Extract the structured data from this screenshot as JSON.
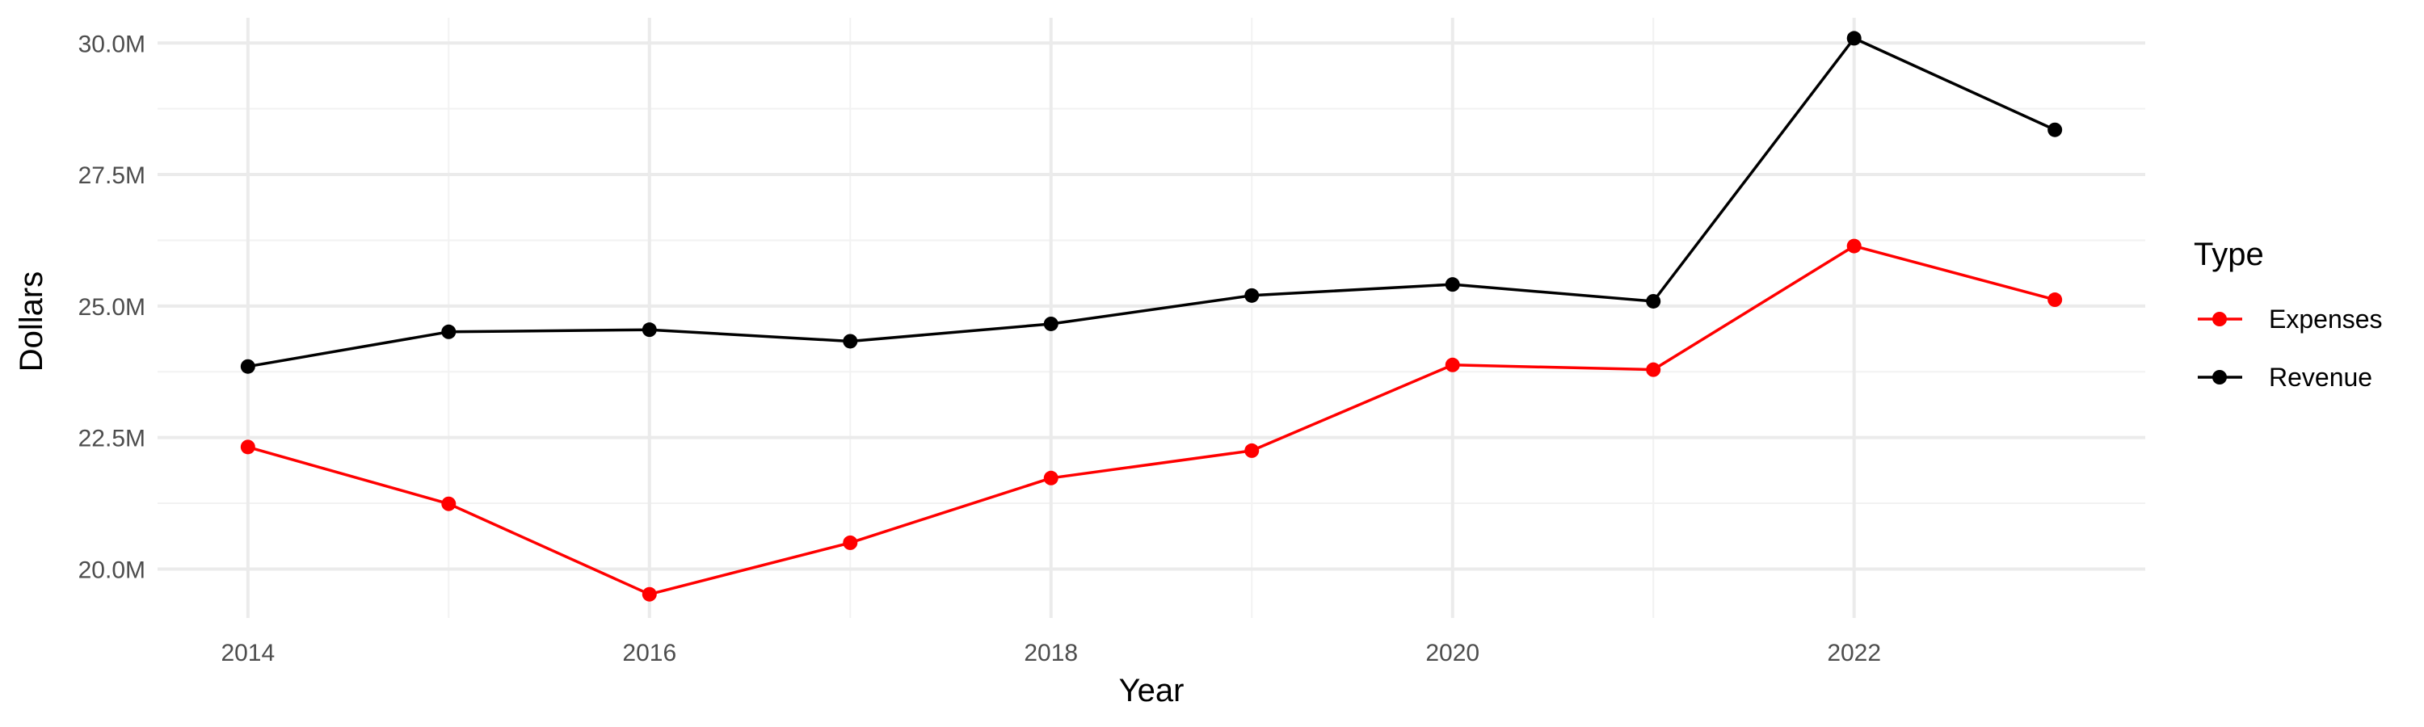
{
  "chart_data": {
    "type": "line",
    "title": "",
    "xlabel": "Year",
    "ylabel": "Dollars",
    "x": [
      2014,
      2015,
      2016,
      2017,
      2018,
      2019,
      2020,
      2021,
      2022,
      2023
    ],
    "x_ticks": [
      2014,
      2016,
      2018,
      2020,
      2022
    ],
    "x_tick_labels": [
      "2014",
      "2016",
      "2018",
      "2020",
      "2022"
    ],
    "xlim": [
      2013.55,
      2023.45
    ],
    "y_ticks": [
      20000000,
      22500000,
      25000000,
      27500000,
      30000000
    ],
    "y_tick_labels": [
      "20.0M",
      "22.5M",
      "25.0M",
      "27.5M",
      "30.0M"
    ],
    "ylim": [
      19070000,
      30480000
    ],
    "grid": true,
    "legend": {
      "title": "Type",
      "position": "right",
      "entries": [
        "Expenses",
        "Revenue"
      ]
    },
    "series": [
      {
        "name": "Expenses",
        "color": "#ff0000",
        "values": [
          22320000,
          21240000,
          19520000,
          20500000,
          21730000,
          22250000,
          23880000,
          23790000,
          26140000,
          25120000
        ]
      },
      {
        "name": "Revenue",
        "color": "#000000",
        "values": [
          23850000,
          24510000,
          24550000,
          24330000,
          24660000,
          25200000,
          25410000,
          25090000,
          30090000,
          28350000
        ]
      }
    ]
  }
}
